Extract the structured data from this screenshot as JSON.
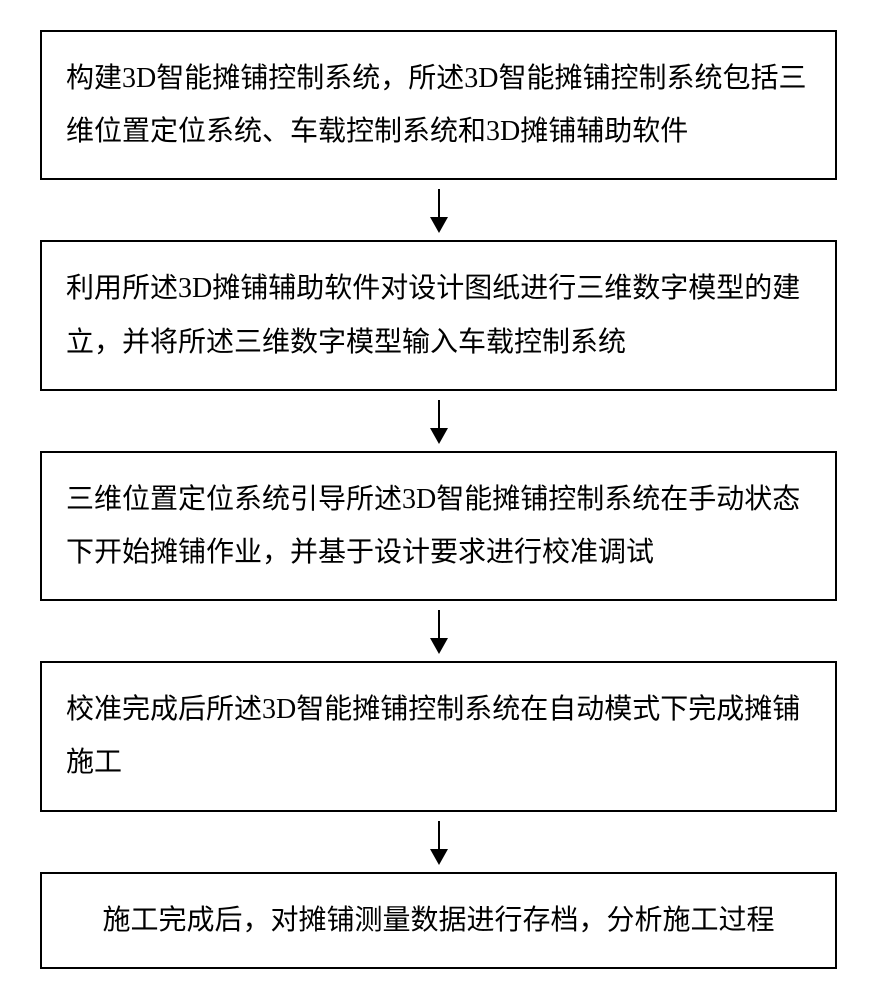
{
  "flowchart": {
    "type": "flowchart",
    "direction": "vertical",
    "box_border_color": "#000000",
    "box_border_width": 2,
    "box_background": "#ffffff",
    "text_color": "#000000",
    "font_size": 28,
    "font_family": "SimSun",
    "arrow_color": "#000000",
    "arrow_height": 42,
    "arrowhead_width": 18,
    "arrowhead_height": 16,
    "steps": [
      {
        "text": "构建3D智能摊铺控制系统，所述3D智能摊铺控制系统包括三维位置定位系统、车载控制系统和3D摊铺辅助软件",
        "align": "left"
      },
      {
        "text": "利用所述3D摊铺辅助软件对设计图纸进行三维数字模型的建立，并将所述三维数字模型输入车载控制系统",
        "align": "left"
      },
      {
        "text": "三维位置定位系统引导所述3D智能摊铺控制系统在手动状态下开始摊铺作业，并基于设计要求进行校准调试",
        "align": "left"
      },
      {
        "text": "校准完成后所述3D智能摊铺控制系统在自动模式下完成摊铺施工",
        "align": "left"
      },
      {
        "text": "施工完成后，对摊铺测量数据进行存档，分析施工过程",
        "align": "center"
      }
    ]
  }
}
